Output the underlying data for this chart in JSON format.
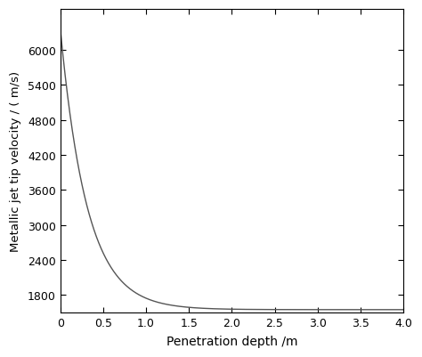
{
  "xlabel": "Penetration depth /m",
  "ylabel": "Metallic jet tip velocity / ( m/s)",
  "xlim": [
    0,
    4.0
  ],
  "ylim": [
    1500,
    6700
  ],
  "xticks": [
    0,
    0.5,
    1.0,
    1.5,
    2.0,
    2.5,
    3.0,
    3.5,
    4.0
  ],
  "yticks": [
    1800,
    2400,
    3000,
    3600,
    4200,
    4800,
    5400,
    6000
  ],
  "line_color": "#555555",
  "line_width": 1.0,
  "v0": 6350,
  "v_asymptote": 1550,
  "decay_k": 3.2,
  "box_frame": true
}
